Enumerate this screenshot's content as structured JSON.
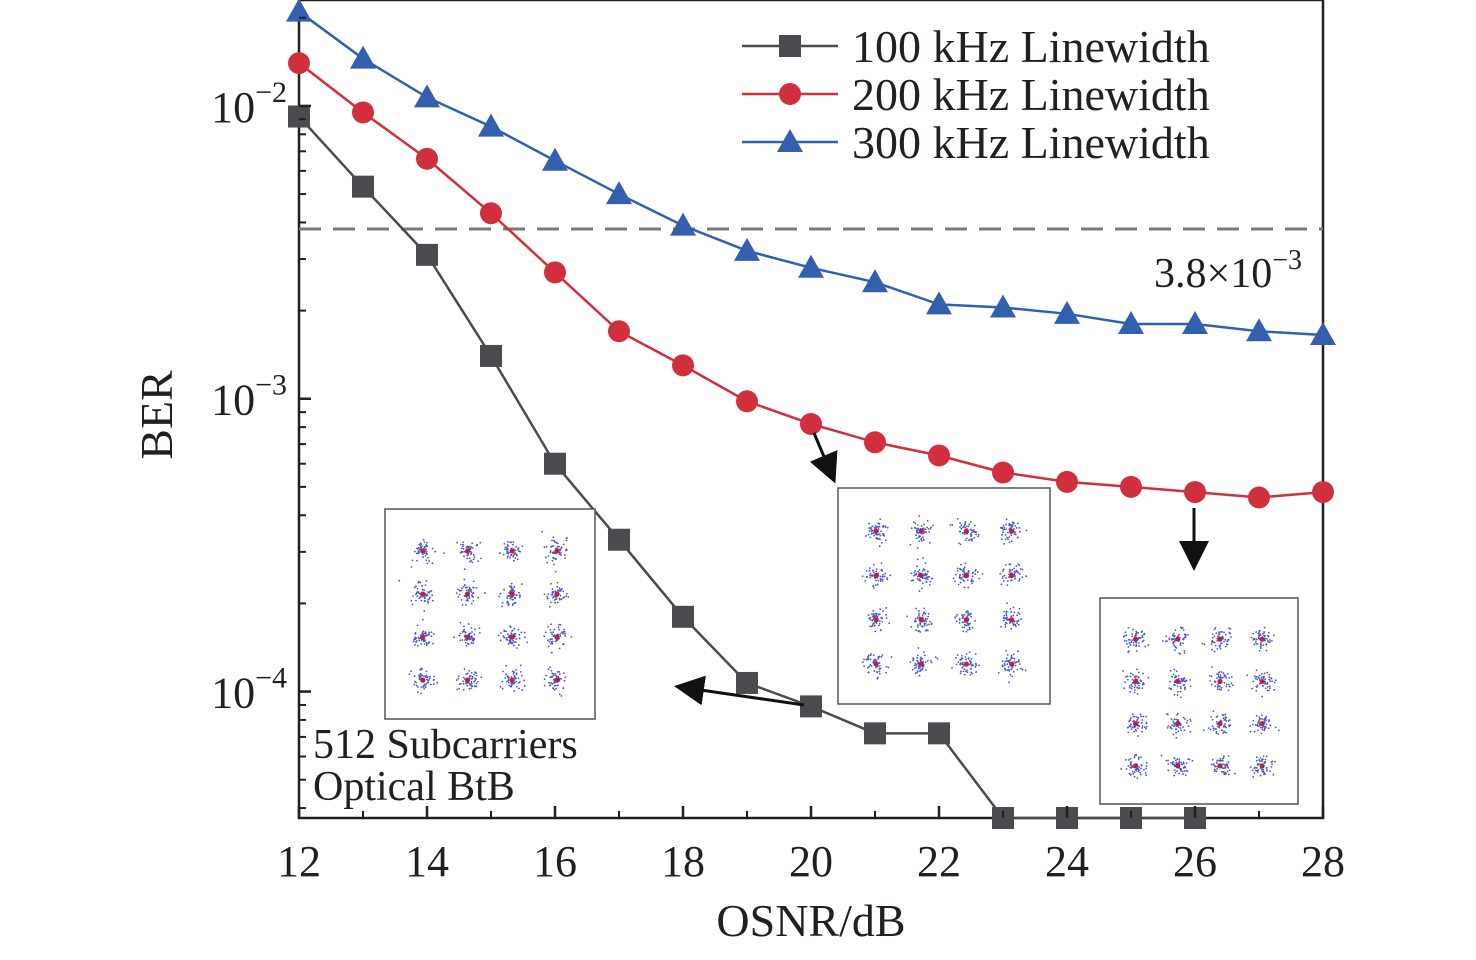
{
  "chart_data": {
    "type": "line",
    "title": "",
    "xlabel": "OSNR/dB",
    "ylabel": "BER",
    "xlim": [
      12,
      28
    ],
    "ylim": [
      3.7e-05,
      0.023
    ],
    "yscale": "log",
    "x_ticks": [
      12,
      14,
      16,
      18,
      20,
      22,
      24,
      26,
      28
    ],
    "x_tick_labels": [
      "12",
      "14",
      "16",
      "18",
      "20",
      "22",
      "24",
      "26",
      "28"
    ],
    "y_ticks": [
      {
        "value": 0.01,
        "base": "10",
        "exp": "−2"
      },
      {
        "value": 0.001,
        "base": "10",
        "exp": "−3"
      },
      {
        "value": 0.0001,
        "base": "10",
        "exp": "−4"
      }
    ],
    "x": [
      12,
      13,
      14,
      15,
      16,
      17,
      18,
      19,
      20,
      21,
      22,
      23,
      24,
      25,
      26,
      27,
      28
    ],
    "series": [
      {
        "name": "100 kHz Linewidth",
        "marker": "square",
        "color": "#4a4a4f",
        "values": [
          0.0092,
          0.0053,
          0.0031,
          0.0014,
          0.0006,
          0.00033,
          0.00018,
          0.000107,
          8.9e-05,
          7.2e-05,
          7.2e-05,
          3.7e-05,
          3.7e-05,
          3.7e-05,
          3.7e-05,
          null,
          null
        ]
      },
      {
        "name": "200 kHz Linewidth",
        "marker": "circle",
        "color": "#d22f3c",
        "values": [
          0.014,
          0.0095,
          0.0066,
          0.0043,
          0.0027,
          0.0017,
          0.0013,
          0.00098,
          0.00082,
          0.00071,
          0.00064,
          0.00056,
          0.00052,
          0.0005,
          0.00048,
          0.00046,
          0.00048
        ]
      },
      {
        "name": "300 kHz Linewidth",
        "marker": "triangle",
        "color": "#3360ae",
        "values": [
          0.021,
          0.0145,
          0.0107,
          0.0085,
          0.0065,
          0.005,
          0.0039,
          0.0032,
          0.0028,
          0.0025,
          0.0021,
          0.00205,
          0.00195,
          0.0018,
          0.0018,
          0.0017,
          0.00165
        ]
      }
    ],
    "threshold": {
      "value": 0.0038,
      "label_base": "3.8×10",
      "label_exp": "−3",
      "color": "#7a7a7a"
    },
    "legend_position": "top-right",
    "grid": false,
    "annotations": [
      "512 Subcarriers",
      "Optical BtB"
    ],
    "insets": [
      {
        "name": "constellation-16qam-osnr-20-100khz",
        "from_x": 20,
        "series_index": 0,
        "grid": 4
      },
      {
        "name": "constellation-16qam-osnr-20-200khz",
        "from_x": 20,
        "series_index": 1,
        "grid": 4
      },
      {
        "name": "constellation-16qam-osnr-26-200khz",
        "from_x": 26,
        "series_index": 1,
        "grid": 4
      }
    ]
  }
}
